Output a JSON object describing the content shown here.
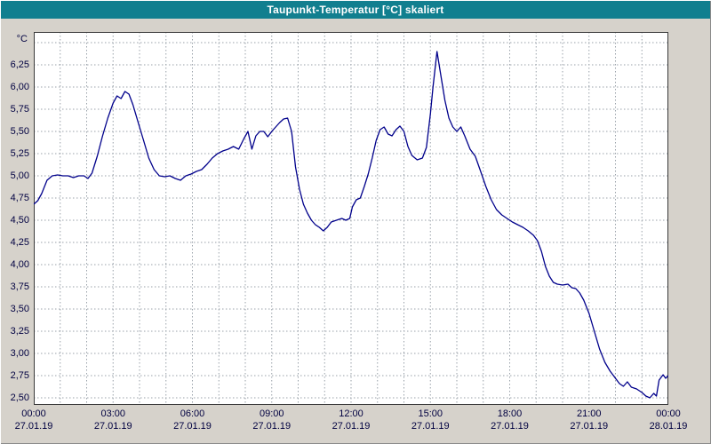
{
  "title": "Taupunkt-Temperatur [°C] skaliert",
  "colors": {
    "titlebar": "#117f8f",
    "title_text": "#ffffff",
    "window_bg": "#d6d2cb",
    "plot_bg": "#ffffff",
    "grid": "#9aa2aa",
    "border": "#3a3a3a",
    "line": "#00008b",
    "label": "#000040"
  },
  "chart_data": {
    "type": "line",
    "title": "Taupunkt-Temperatur [°C] skaliert",
    "xlabel": "",
    "ylabel": "°C",
    "grid": "dashed",
    "legend_position": "none",
    "ylim": [
      2.42,
      6.62
    ],
    "yticks": [
      2.5,
      2.75,
      3.0,
      3.25,
      3.5,
      3.75,
      4.0,
      4.25,
      4.5,
      4.75,
      5.0,
      5.25,
      5.5,
      5.75,
      6.0,
      6.25,
      6.5
    ],
    "ytick_labels": [
      "2,50",
      "2,75",
      "3,00",
      "3,25",
      "3,50",
      "3,75",
      "4,00",
      "4,25",
      "4,50",
      "4,75",
      "5,00",
      "5,25",
      "5,50",
      "5,75",
      "6,00",
      "6,25",
      ""
    ],
    "xlim_hours": [
      0,
      24
    ],
    "x_gridline_every_hours": 1,
    "xticks": [
      {
        "hour": 0,
        "time": "00:00",
        "date": "27.01.19"
      },
      {
        "hour": 3,
        "time": "03:00",
        "date": "27.01.19"
      },
      {
        "hour": 6,
        "time": "06:00",
        "date": "27.01.19"
      },
      {
        "hour": 9,
        "time": "09:00",
        "date": "27.01.19"
      },
      {
        "hour": 12,
        "time": "12:00",
        "date": "27.01.19"
      },
      {
        "hour": 15,
        "time": "15:00",
        "date": "27.01.19"
      },
      {
        "hour": 18,
        "time": "18:00",
        "date": "27.01.19"
      },
      {
        "hour": 21,
        "time": "21:00",
        "date": "27.01.19"
      },
      {
        "hour": 24,
        "time": "00:00",
        "date": "28.01.19"
      }
    ],
    "series": [
      {
        "name": "Taupunkt-Temperatur",
        "color": "#00008b",
        "points": [
          [
            0,
            4.68
          ],
          [
            0.15,
            4.72
          ],
          [
            0.3,
            4.8
          ],
          [
            0.5,
            4.95
          ],
          [
            0.7,
            5.0
          ],
          [
            0.9,
            5.01
          ],
          [
            1.1,
            5.0
          ],
          [
            1.3,
            5.0
          ],
          [
            1.5,
            4.98
          ],
          [
            1.7,
            5.0
          ],
          [
            1.9,
            5.0
          ],
          [
            2.05,
            4.97
          ],
          [
            2.2,
            5.03
          ],
          [
            2.4,
            5.22
          ],
          [
            2.6,
            5.45
          ],
          [
            2.8,
            5.65
          ],
          [
            3.0,
            5.82
          ],
          [
            3.15,
            5.9
          ],
          [
            3.3,
            5.87
          ],
          [
            3.45,
            5.95
          ],
          [
            3.6,
            5.92
          ],
          [
            3.75,
            5.8
          ],
          [
            3.95,
            5.6
          ],
          [
            4.15,
            5.4
          ],
          [
            4.35,
            5.2
          ],
          [
            4.55,
            5.07
          ],
          [
            4.75,
            5.0
          ],
          [
            4.95,
            4.99
          ],
          [
            5.15,
            5.0
          ],
          [
            5.35,
            4.97
          ],
          [
            5.55,
            4.95
          ],
          [
            5.75,
            5.0
          ],
          [
            5.95,
            5.02
          ],
          [
            6.15,
            5.05
          ],
          [
            6.35,
            5.07
          ],
          [
            6.55,
            5.13
          ],
          [
            6.75,
            5.2
          ],
          [
            6.95,
            5.25
          ],
          [
            7.15,
            5.28
          ],
          [
            7.35,
            5.3
          ],
          [
            7.55,
            5.33
          ],
          [
            7.75,
            5.3
          ],
          [
            7.95,
            5.42
          ],
          [
            8.1,
            5.5
          ],
          [
            8.25,
            5.3
          ],
          [
            8.4,
            5.45
          ],
          [
            8.55,
            5.5
          ],
          [
            8.7,
            5.5
          ],
          [
            8.85,
            5.44
          ],
          [
            9.0,
            5.5
          ],
          [
            9.15,
            5.55
          ],
          [
            9.3,
            5.6
          ],
          [
            9.45,
            5.64
          ],
          [
            9.6,
            5.65
          ],
          [
            9.75,
            5.5
          ],
          [
            9.9,
            5.1
          ],
          [
            10.05,
            4.85
          ],
          [
            10.2,
            4.68
          ],
          [
            10.35,
            4.58
          ],
          [
            10.5,
            4.5
          ],
          [
            10.65,
            4.45
          ],
          [
            10.8,
            4.42
          ],
          [
            10.95,
            4.38
          ],
          [
            11.1,
            4.42
          ],
          [
            11.25,
            4.48
          ],
          [
            11.45,
            4.5
          ],
          [
            11.65,
            4.52
          ],
          [
            11.8,
            4.5
          ],
          [
            11.95,
            4.52
          ],
          [
            12.05,
            4.65
          ],
          [
            12.2,
            4.73
          ],
          [
            12.35,
            4.75
          ],
          [
            12.5,
            4.88
          ],
          [
            12.65,
            5.02
          ],
          [
            12.8,
            5.2
          ],
          [
            12.95,
            5.4
          ],
          [
            13.1,
            5.52
          ],
          [
            13.25,
            5.55
          ],
          [
            13.4,
            5.47
          ],
          [
            13.55,
            5.45
          ],
          [
            13.7,
            5.52
          ],
          [
            13.85,
            5.56
          ],
          [
            14.0,
            5.5
          ],
          [
            14.15,
            5.33
          ],
          [
            14.3,
            5.23
          ],
          [
            14.5,
            5.18
          ],
          [
            14.7,
            5.2
          ],
          [
            14.85,
            5.32
          ],
          [
            15.0,
            5.7
          ],
          [
            15.1,
            6.0
          ],
          [
            15.25,
            6.4
          ],
          [
            15.4,
            6.12
          ],
          [
            15.55,
            5.85
          ],
          [
            15.7,
            5.65
          ],
          [
            15.85,
            5.55
          ],
          [
            16.0,
            5.5
          ],
          [
            16.15,
            5.55
          ],
          [
            16.3,
            5.45
          ],
          [
            16.5,
            5.3
          ],
          [
            16.7,
            5.22
          ],
          [
            16.9,
            5.05
          ],
          [
            17.1,
            4.88
          ],
          [
            17.3,
            4.73
          ],
          [
            17.5,
            4.62
          ],
          [
            17.7,
            4.56
          ],
          [
            17.9,
            4.52
          ],
          [
            18.1,
            4.48
          ],
          [
            18.3,
            4.45
          ],
          [
            18.5,
            4.42
          ],
          [
            18.7,
            4.38
          ],
          [
            18.9,
            4.33
          ],
          [
            19.05,
            4.27
          ],
          [
            19.2,
            4.15
          ],
          [
            19.35,
            3.98
          ],
          [
            19.5,
            3.87
          ],
          [
            19.65,
            3.8
          ],
          [
            19.8,
            3.78
          ],
          [
            20.0,
            3.77
          ],
          [
            20.2,
            3.78
          ],
          [
            20.35,
            3.74
          ],
          [
            20.5,
            3.73
          ],
          [
            20.65,
            3.68
          ],
          [
            20.8,
            3.6
          ],
          [
            21.0,
            3.45
          ],
          [
            21.2,
            3.25
          ],
          [
            21.4,
            3.05
          ],
          [
            21.6,
            2.9
          ],
          [
            21.8,
            2.8
          ],
          [
            22.0,
            2.72
          ],
          [
            22.15,
            2.66
          ],
          [
            22.3,
            2.63
          ],
          [
            22.45,
            2.68
          ],
          [
            22.6,
            2.62
          ],
          [
            22.8,
            2.6
          ],
          [
            23.0,
            2.56
          ],
          [
            23.15,
            2.52
          ],
          [
            23.3,
            2.5
          ],
          [
            23.45,
            2.55
          ],
          [
            23.55,
            2.52
          ],
          [
            23.65,
            2.7
          ],
          [
            23.8,
            2.76
          ],
          [
            23.9,
            2.72
          ],
          [
            24.0,
            2.75
          ]
        ]
      }
    ]
  }
}
